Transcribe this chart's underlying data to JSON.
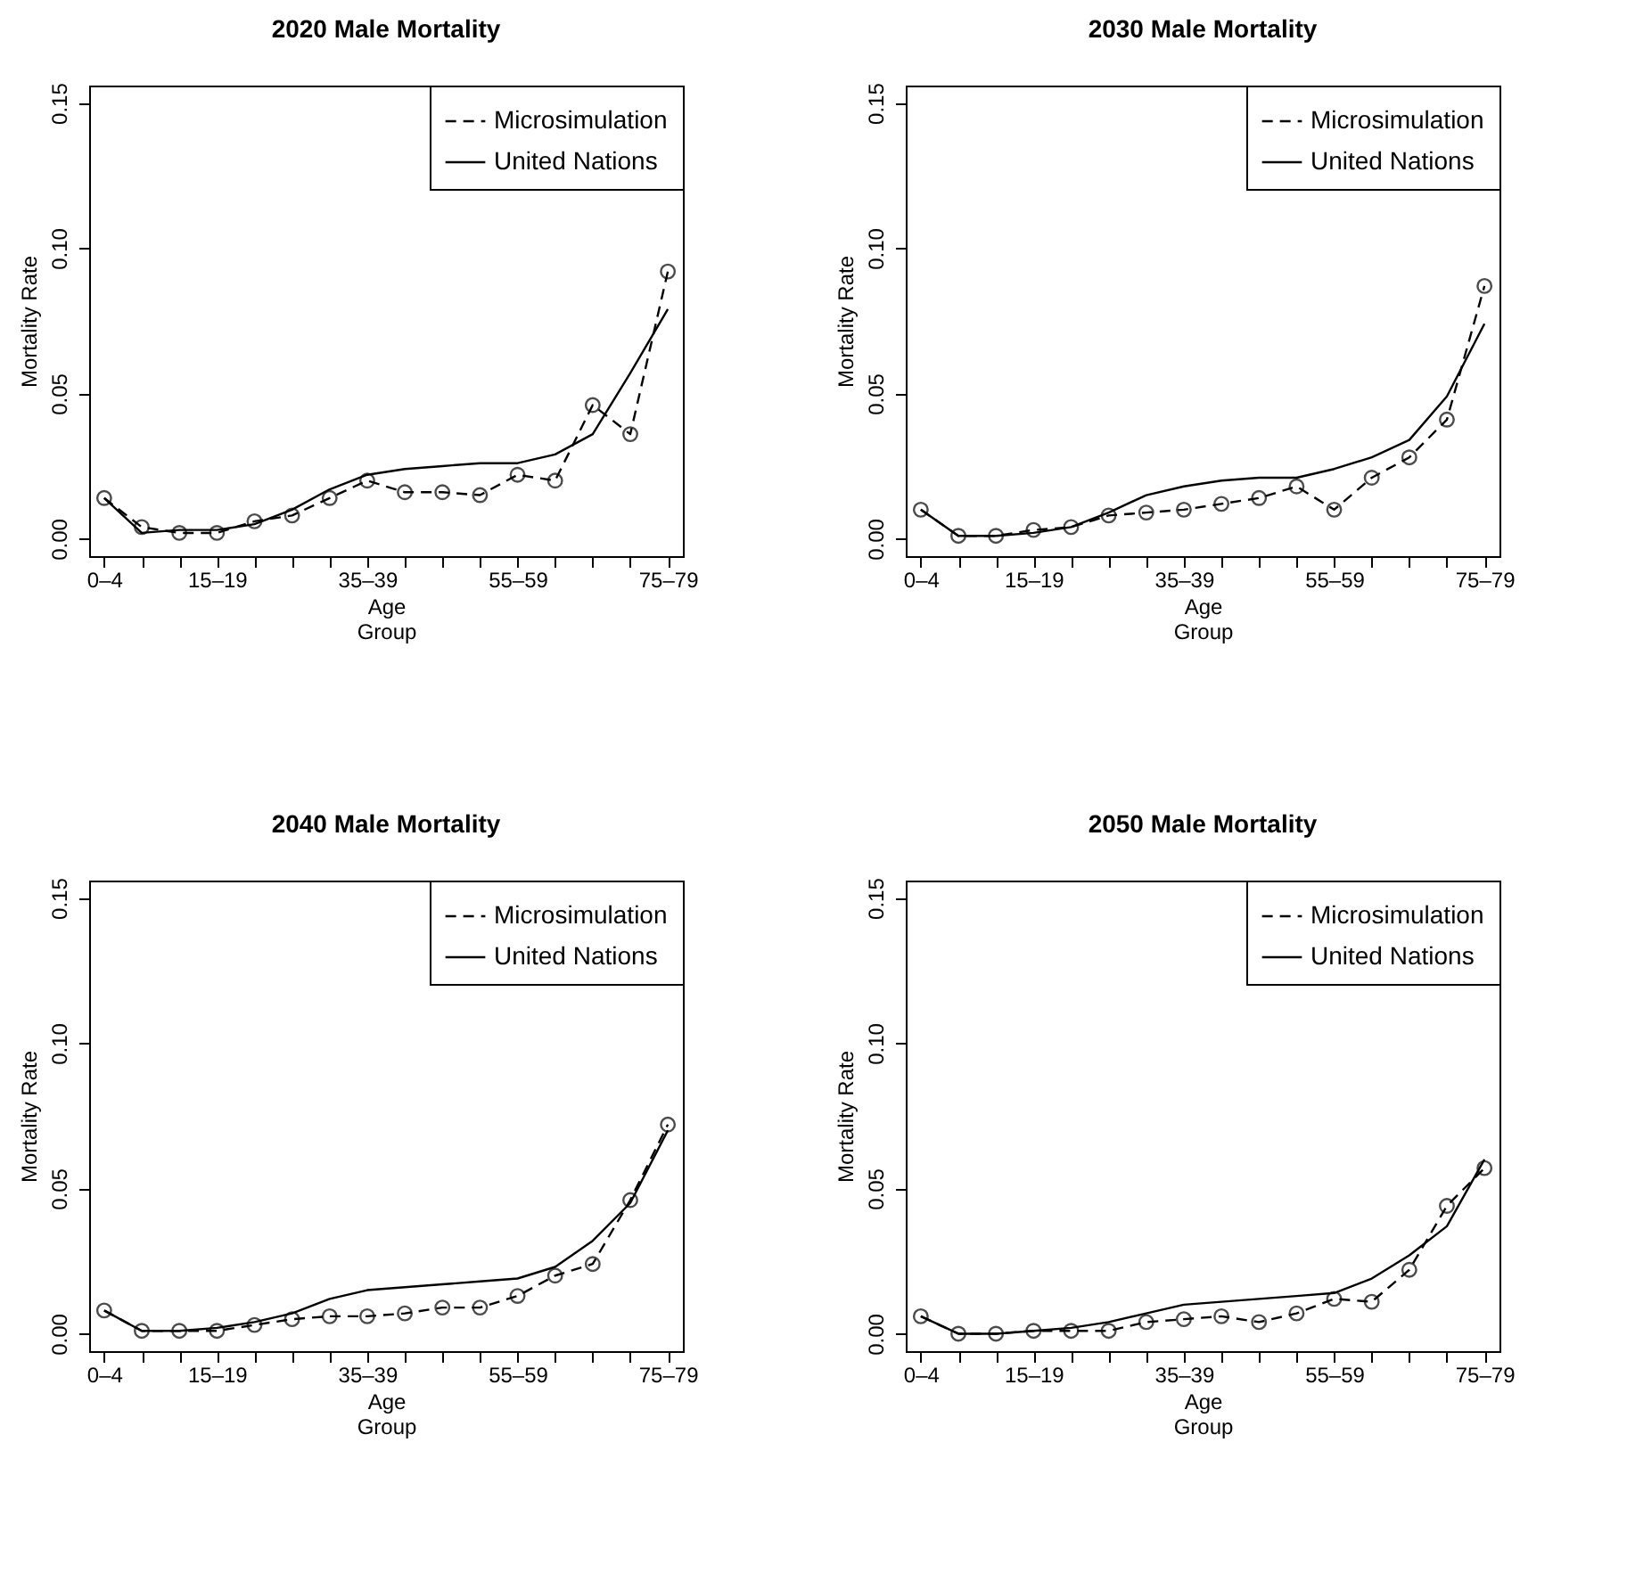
{
  "chart_data": [
    {
      "type": "line",
      "title": "2020 Male Mortality",
      "xlabel": "Age\nGroup",
      "ylabel": "Mortality Rate",
      "categories": [
        "0–4",
        null,
        null,
        "15–19",
        null,
        null,
        null,
        "35–39",
        null,
        null,
        null,
        "55–59",
        null,
        null,
        null,
        "75–79"
      ],
      "ylim": [
        -0.006,
        0.156
      ],
      "yticks": [
        {
          "value": 0,
          "label": "0.00"
        },
        {
          "value": 0.05,
          "label": "0.05"
        },
        {
          "value": 0.1,
          "label": "0.10"
        },
        {
          "value": 0.15,
          "label": "0.15"
        }
      ],
      "legend": "top right",
      "series": [
        {
          "name": "Microsimulation",
          "color": "#000000",
          "marker": "circle",
          "line_style": "dashed",
          "values": [
            0.014,
            0.004,
            0.002,
            0.002,
            0.006,
            0.008,
            0.014,
            0.02,
            0.016,
            0.016,
            0.015,
            0.022,
            0.02,
            0.046,
            0.036,
            0.092
          ]
        },
        {
          "name": "United Nations",
          "color": "#000000",
          "marker": "none",
          "line_style": "solid",
          "values": [
            0.014,
            0.002,
            0.003,
            0.003,
            0.005,
            0.01,
            0.017,
            0.022,
            0.024,
            0.025,
            0.026,
            0.026,
            0.029,
            0.036,
            0.057,
            0.079
          ]
        }
      ]
    },
    {
      "type": "line",
      "title": "2030 Male Mortality",
      "xlabel": "Age\nGroup",
      "ylabel": "Mortality Rate",
      "categories": [
        "0–4",
        null,
        null,
        "15–19",
        null,
        null,
        null,
        "35–39",
        null,
        null,
        null,
        "55–59",
        null,
        null,
        null,
        "75–79"
      ],
      "ylim": [
        -0.006,
        0.156
      ],
      "yticks": [
        {
          "value": 0,
          "label": "0.00"
        },
        {
          "value": 0.05,
          "label": "0.05"
        },
        {
          "value": 0.1,
          "label": "0.10"
        },
        {
          "value": 0.15,
          "label": "0.15"
        }
      ],
      "legend": "top right",
      "series": [
        {
          "name": "Microsimulation",
          "color": "#000000",
          "marker": "circle",
          "line_style": "dashed",
          "values": [
            0.01,
            0.001,
            0.001,
            0.003,
            0.004,
            0.008,
            0.009,
            0.01,
            0.012,
            0.014,
            0.018,
            0.01,
            0.021,
            0.028,
            0.041,
            0.087
          ]
        },
        {
          "name": "United Nations",
          "color": "#000000",
          "marker": "none",
          "line_style": "solid",
          "values": [
            0.01,
            0.001,
            0.001,
            0.002,
            0.004,
            0.009,
            0.015,
            0.018,
            0.02,
            0.021,
            0.021,
            0.024,
            0.028,
            0.034,
            0.049,
            0.074
          ]
        }
      ]
    },
    {
      "type": "line",
      "title": "2040 Male Mortality",
      "xlabel": "Age\nGroup",
      "ylabel": "Mortality Rate",
      "categories": [
        "0–4",
        null,
        null,
        "15–19",
        null,
        null,
        null,
        "35–39",
        null,
        null,
        null,
        "55–59",
        null,
        null,
        null,
        "75–79"
      ],
      "ylim": [
        -0.006,
        0.156
      ],
      "yticks": [
        {
          "value": 0,
          "label": "0.00"
        },
        {
          "value": 0.05,
          "label": "0.05"
        },
        {
          "value": 0.1,
          "label": "0.10"
        },
        {
          "value": 0.15,
          "label": "0.15"
        }
      ],
      "legend": "top right",
      "series": [
        {
          "name": "Microsimulation",
          "color": "#000000",
          "marker": "circle",
          "line_style": "dashed",
          "values": [
            0.008,
            0.001,
            0.001,
            0.001,
            0.003,
            0.005,
            0.006,
            0.006,
            0.007,
            0.009,
            0.009,
            0.013,
            0.02,
            0.024,
            0.046,
            0.072
          ]
        },
        {
          "name": "United Nations",
          "color": "#000000",
          "marker": "none",
          "line_style": "solid",
          "values": [
            0.008,
            0.001,
            0.001,
            0.002,
            0.004,
            0.007,
            0.012,
            0.015,
            0.016,
            0.017,
            0.018,
            0.019,
            0.023,
            0.032,
            0.045,
            0.07
          ]
        }
      ]
    },
    {
      "type": "line",
      "title": "2050 Male Mortality",
      "xlabel": "Age\nGroup",
      "ylabel": "Mortality Rate",
      "categories": [
        "0–4",
        null,
        null,
        "15–19",
        null,
        null,
        null,
        "35–39",
        null,
        null,
        null,
        "55–59",
        null,
        null,
        null,
        "75–79"
      ],
      "ylim": [
        -0.006,
        0.156
      ],
      "yticks": [
        {
          "value": 0,
          "label": "0.00"
        },
        {
          "value": 0.05,
          "label": "0.05"
        },
        {
          "value": 0.1,
          "label": "0.10"
        },
        {
          "value": 0.15,
          "label": "0.15"
        }
      ],
      "legend": "top right",
      "series": [
        {
          "name": "Microsimulation",
          "color": "#000000",
          "marker": "circle",
          "line_style": "dashed",
          "values": [
            0.006,
            0.0,
            0.0,
            0.001,
            0.001,
            0.001,
            0.004,
            0.005,
            0.006,
            0.004,
            0.007,
            0.012,
            0.011,
            0.022,
            0.044,
            0.057
          ]
        },
        {
          "name": "United Nations",
          "color": "#000000",
          "marker": "none",
          "line_style": "solid",
          "values": [
            0.006,
            0.0,
            0.0,
            0.001,
            0.002,
            0.004,
            0.007,
            0.01,
            0.011,
            0.012,
            0.013,
            0.014,
            0.019,
            0.027,
            0.037,
            0.06
          ]
        }
      ]
    }
  ]
}
